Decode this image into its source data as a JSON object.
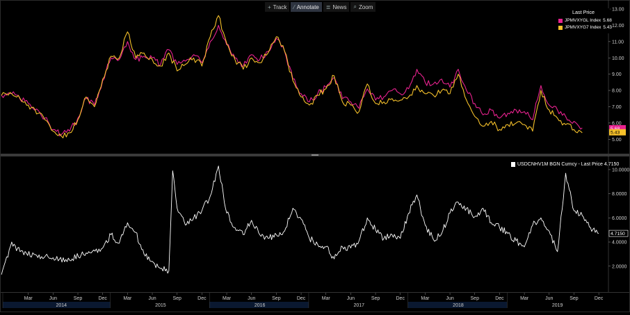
{
  "toolbar": {
    "items": [
      {
        "label": "Track",
        "icon": "crosshair-icon",
        "glyph": "+"
      },
      {
        "label": "Annotate",
        "icon": "pencil-icon",
        "glyph": "⁄"
      },
      {
        "label": "News",
        "icon": "news-icon",
        "glyph": "≣"
      },
      {
        "label": "Zoom",
        "icon": "zoom-icon",
        "glyph": "⌕"
      }
    ]
  },
  "colors": {
    "background": "#000000",
    "magenta": "#e8228f",
    "gold": "#f5c02a",
    "white_line": "#ffffff",
    "axis_text": "#d0d0d0"
  },
  "chart_data": [
    {
      "type": "line",
      "legend_title": "Last Price",
      "series": [
        {
          "name": "JPMVXYGL Index",
          "last": "5.68",
          "color": "#e8228f",
          "points": [
            [
              "2013-11",
              7.7
            ],
            [
              "2014-01",
              7.8
            ],
            [
              "2014-03",
              7.2
            ],
            [
              "2014-05",
              6.3
            ],
            [
              "2014-06",
              5.6
            ],
            [
              "2014-07",
              5.3
            ],
            [
              "2014-08",
              5.5
            ],
            [
              "2014-09",
              6.3
            ],
            [
              "2014-10",
              7.5
            ],
            [
              "2014-11",
              7.1
            ],
            [
              "2014-12",
              8.6
            ],
            [
              "2015-01",
              10.0
            ],
            [
              "2015-02",
              9.9
            ],
            [
              "2015-03",
              11.0
            ],
            [
              "2015-04",
              9.9
            ],
            [
              "2015-05",
              10.1
            ],
            [
              "2015-06",
              10.0
            ],
            [
              "2015-07",
              9.6
            ],
            [
              "2015-08",
              10.5
            ],
            [
              "2015-09",
              9.6
            ],
            [
              "2015-10",
              9.8
            ],
            [
              "2015-11",
              10.2
            ],
            [
              "2015-12",
              9.7
            ],
            [
              "2016-01",
              11.0
            ],
            [
              "2016-02",
              12.0
            ],
            [
              "2016-03",
              10.8
            ],
            [
              "2016-04",
              10.0
            ],
            [
              "2016-05",
              9.5
            ],
            [
              "2016-06",
              10.2
            ],
            [
              "2016-07",
              9.9
            ],
            [
              "2016-08",
              10.4
            ],
            [
              "2016-09",
              11.2
            ],
            [
              "2016-10",
              10.4
            ],
            [
              "2016-11",
              8.7
            ],
            [
              "2016-12",
              7.8
            ],
            [
              "2017-01",
              7.3
            ],
            [
              "2017-02",
              7.8
            ],
            [
              "2017-03",
              8.2
            ],
            [
              "2017-04",
              8.8
            ],
            [
              "2017-05",
              7.5
            ],
            [
              "2017-06",
              7.3
            ],
            [
              "2017-07",
              6.9
            ],
            [
              "2017-08",
              8.1
            ],
            [
              "2017-09",
              7.4
            ],
            [
              "2017-10",
              7.6
            ],
            [
              "2017-11",
              8.0
            ],
            [
              "2017-12",
              7.8
            ],
            [
              "2018-01",
              8.1
            ],
            [
              "2018-02",
              9.3
            ],
            [
              "2018-03",
              8.5
            ],
            [
              "2018-04",
              8.4
            ],
            [
              "2018-05",
              8.7
            ],
            [
              "2018-06",
              8.2
            ],
            [
              "2018-07",
              9.3
            ],
            [
              "2018-08",
              8.0
            ],
            [
              "2018-09",
              7.2
            ],
            [
              "2018-10",
              6.5
            ],
            [
              "2018-11",
              6.8
            ],
            [
              "2018-12",
              6.3
            ],
            [
              "2019-01",
              6.6
            ],
            [
              "2019-02",
              6.8
            ],
            [
              "2019-03",
              6.7
            ],
            [
              "2019-04",
              6.2
            ],
            [
              "2019-05",
              8.3
            ],
            [
              "2019-06",
              7.1
            ],
            [
              "2019-07",
              6.8
            ],
            [
              "2019-08",
              6.4
            ],
            [
              "2019-09",
              6.1
            ],
            [
              "2019-10",
              5.7
            ]
          ]
        },
        {
          "name": "JPMVXYG7 Index",
          "last": "5.43",
          "color": "#f5c02a",
          "points": [
            [
              "2013-11",
              7.7
            ],
            [
              "2014-01",
              7.8
            ],
            [
              "2014-03",
              7.1
            ],
            [
              "2014-05",
              6.2
            ],
            [
              "2014-06",
              5.5
            ],
            [
              "2014-07",
              5.2
            ],
            [
              "2014-08",
              5.4
            ],
            [
              "2014-09",
              6.2
            ],
            [
              "2014-10",
              7.6
            ],
            [
              "2014-11",
              7.0
            ],
            [
              "2014-12",
              8.7
            ],
            [
              "2015-01",
              10.1
            ],
            [
              "2015-02",
              10.0
            ],
            [
              "2015-03",
              11.6
            ],
            [
              "2015-04",
              10.0
            ],
            [
              "2015-05",
              10.3
            ],
            [
              "2015-06",
              9.9
            ],
            [
              "2015-07",
              9.5
            ],
            [
              "2015-08",
              10.3
            ],
            [
              "2015-09",
              9.2
            ],
            [
              "2015-10",
              9.6
            ],
            [
              "2015-11",
              10.0
            ],
            [
              "2015-12",
              9.5
            ],
            [
              "2016-01",
              11.3
            ],
            [
              "2016-02",
              12.6
            ],
            [
              "2016-03",
              10.9
            ],
            [
              "2016-04",
              9.9
            ],
            [
              "2016-05",
              9.3
            ],
            [
              "2016-06",
              10.0
            ],
            [
              "2016-07",
              9.7
            ],
            [
              "2016-08",
              10.3
            ],
            [
              "2016-09",
              11.3
            ],
            [
              "2016-10",
              10.4
            ],
            [
              "2016-11",
              8.6
            ],
            [
              "2016-12",
              7.6
            ],
            [
              "2017-01",
              7.1
            ],
            [
              "2017-02",
              7.7
            ],
            [
              "2017-03",
              8.1
            ],
            [
              "2017-04",
              8.9
            ],
            [
              "2017-05",
              7.3
            ],
            [
              "2017-06",
              7.1
            ],
            [
              "2017-07",
              6.7
            ],
            [
              "2017-08",
              8.4
            ],
            [
              "2017-09",
              7.2
            ],
            [
              "2017-10",
              7.3
            ],
            [
              "2017-11",
              7.5
            ],
            [
              "2017-12",
              7.4
            ],
            [
              "2018-01",
              7.6
            ],
            [
              "2018-02",
              8.3
            ],
            [
              "2018-03",
              7.8
            ],
            [
              "2018-04",
              7.7
            ],
            [
              "2018-05",
              8.0
            ],
            [
              "2018-06",
              7.8
            ],
            [
              "2018-07",
              9.0
            ],
            [
              "2018-08",
              7.4
            ],
            [
              "2018-09",
              6.4
            ],
            [
              "2018-10",
              5.8
            ],
            [
              "2018-11",
              6.1
            ],
            [
              "2018-12",
              5.6
            ],
            [
              "2019-01",
              5.9
            ],
            [
              "2019-02",
              6.0
            ],
            [
              "2019-03",
              5.9
            ],
            [
              "2019-04",
              5.5
            ],
            [
              "2019-05",
              8.0
            ],
            [
              "2019-06",
              6.8
            ],
            [
              "2019-07",
              6.3
            ],
            [
              "2019-08",
              5.9
            ],
            [
              "2019-09",
              5.6
            ],
            [
              "2019-10",
              5.4
            ]
          ]
        }
      ],
      "y_ticks": [
        "13.00",
        "12.00",
        "11.00",
        "10.00",
        "9.00",
        "8.00",
        "7.00",
        "6.00",
        "5.00"
      ],
      "ylim": [
        4.5,
        13.3
      ]
    },
    {
      "type": "line",
      "series": [
        {
          "name": "USDCNHV1M BGN Curncy",
          "legend": "USDCNHV1M BGN Curncy - Last Price 4.7150",
          "last": "4.7150",
          "color": "#ffffff",
          "points": [
            [
              "2013-11",
              1.3
            ],
            [
              "2014-01",
              4.0
            ],
            [
              "2014-02",
              3.2
            ],
            [
              "2014-04",
              2.9
            ],
            [
              "2014-06",
              2.7
            ],
            [
              "2014-08",
              2.5
            ],
            [
              "2014-10",
              3.1
            ],
            [
              "2014-12",
              3.5
            ],
            [
              "2015-01",
              4.6
            ],
            [
              "2015-02",
              3.9
            ],
            [
              "2015-03",
              5.6
            ],
            [
              "2015-04",
              4.8
            ],
            [
              "2015-05",
              3.0
            ],
            [
              "2015-06",
              2.4
            ],
            [
              "2015-07",
              1.8
            ],
            [
              "2015-08",
              1.6
            ],
            [
              "2015-08-15",
              9.9
            ],
            [
              "2015-09",
              6.8
            ],
            [
              "2015-10",
              5.4
            ],
            [
              "2015-11",
              6.0
            ],
            [
              "2015-12",
              6.6
            ],
            [
              "2016-01",
              7.8
            ],
            [
              "2016-02",
              10.3
            ],
            [
              "2016-03",
              6.4
            ],
            [
              "2016-04",
              5.2
            ],
            [
              "2016-05",
              4.6
            ],
            [
              "2016-06",
              5.8
            ],
            [
              "2016-07",
              4.6
            ],
            [
              "2016-08",
              4.3
            ],
            [
              "2016-09",
              4.6
            ],
            [
              "2016-10",
              4.9
            ],
            [
              "2016-11",
              6.8
            ],
            [
              "2016-12",
              5.9
            ],
            [
              "2017-01",
              4.3
            ],
            [
              "2017-02",
              3.8
            ],
            [
              "2017-03",
              3.6
            ],
            [
              "2017-04",
              2.6
            ],
            [
              "2017-05",
              3.6
            ],
            [
              "2017-06",
              3.5
            ],
            [
              "2017-07",
              4.1
            ],
            [
              "2017-08",
              6.0
            ],
            [
              "2017-09",
              5.0
            ],
            [
              "2017-10",
              4.3
            ],
            [
              "2017-11",
              4.6
            ],
            [
              "2017-12",
              4.3
            ],
            [
              "2018-01",
              6.4
            ],
            [
              "2018-02",
              7.9
            ],
            [
              "2018-03",
              5.4
            ],
            [
              "2018-04",
              4.2
            ],
            [
              "2018-05",
              4.7
            ],
            [
              "2018-06",
              6.4
            ],
            [
              "2018-07",
              7.3
            ],
            [
              "2018-08",
              6.8
            ],
            [
              "2018-09",
              6.1
            ],
            [
              "2018-10",
              6.8
            ],
            [
              "2018-11",
              5.6
            ],
            [
              "2018-12",
              5.2
            ],
            [
              "2019-01",
              4.7
            ],
            [
              "2019-02",
              4.1
            ],
            [
              "2019-03",
              3.6
            ],
            [
              "2019-04",
              5.4
            ],
            [
              "2019-05",
              6.0
            ],
            [
              "2019-06",
              4.9
            ],
            [
              "2019-07",
              3.2
            ],
            [
              "2019-08",
              9.7
            ],
            [
              "2019-09",
              6.6
            ],
            [
              "2019-10",
              6.2
            ],
            [
              "2019-11",
              5.2
            ],
            [
              "2019-12",
              4.7
            ]
          ]
        }
      ],
      "y_ticks": [
        "10.0000",
        "8.0000",
        "6.0000",
        "4.0000",
        "2.0000"
      ],
      "ylim": [
        0.2,
        10.8
      ]
    }
  ],
  "xaxis": {
    "months": [
      {
        "label": "Mar",
        "date": "2014-03"
      },
      {
        "label": "Jun",
        "date": "2014-06"
      },
      {
        "label": "Sep",
        "date": "2014-09"
      },
      {
        "label": "Dec",
        "date": "2014-12"
      },
      {
        "label": "Mar",
        "date": "2015-03"
      },
      {
        "label": "Jun",
        "date": "2015-06"
      },
      {
        "label": "Sep",
        "date": "2015-09"
      },
      {
        "label": "Dec",
        "date": "2015-12"
      },
      {
        "label": "Mar",
        "date": "2016-03"
      },
      {
        "label": "Jun",
        "date": "2016-06"
      },
      {
        "label": "Sep",
        "date": "2016-09"
      },
      {
        "label": "Dec",
        "date": "2016-12"
      },
      {
        "label": "Mar",
        "date": "2017-03"
      },
      {
        "label": "Jun",
        "date": "2017-06"
      },
      {
        "label": "Sep",
        "date": "2017-09"
      },
      {
        "label": "Dec",
        "date": "2017-12"
      },
      {
        "label": "Mar",
        "date": "2018-03"
      },
      {
        "label": "Jun",
        "date": "2018-06"
      },
      {
        "label": "Sep",
        "date": "2018-09"
      },
      {
        "label": "Dec",
        "date": "2018-12"
      },
      {
        "label": "Mar",
        "date": "2019-03"
      },
      {
        "label": "Jun",
        "date": "2019-06"
      },
      {
        "label": "Sep",
        "date": "2019-09"
      },
      {
        "label": "Dec",
        "date": "2019-12"
      }
    ],
    "years": [
      {
        "label": "2014",
        "date": "2014-07"
      },
      {
        "label": "2015",
        "date": "2015-07"
      },
      {
        "label": "2016",
        "date": "2016-07"
      },
      {
        "label": "2017",
        "date": "2017-07"
      },
      {
        "label": "2018",
        "date": "2018-07"
      },
      {
        "label": "2019",
        "date": "2019-07"
      }
    ]
  }
}
